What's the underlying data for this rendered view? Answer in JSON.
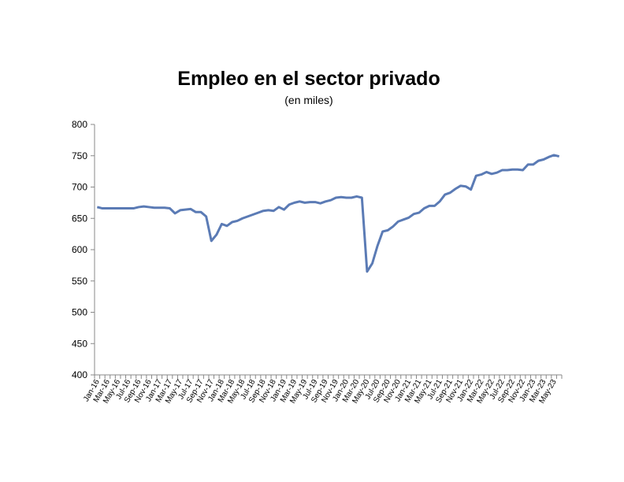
{
  "chart_data": {
    "type": "line",
    "title": "Empleo en el sector privado",
    "subtitle": "(en miles)",
    "categories": [
      "Jan-16",
      null,
      "Mar-16",
      null,
      "May-16",
      null,
      "Jul-16",
      null,
      "Sep-16",
      null,
      "Nov-16",
      null,
      "Jan-17",
      null,
      "Mar-17",
      null,
      "May-17",
      null,
      "Jul-17",
      null,
      "Sep-17",
      null,
      "Nov-17",
      null,
      "Jan-18",
      null,
      "Mar-18",
      null,
      "May-18",
      null,
      "Jul-18",
      null,
      "Sep-18",
      null,
      "Nov-18",
      null,
      "Jan-19",
      null,
      "Mar-19",
      null,
      "May-19",
      null,
      "Jul-19",
      null,
      "Sep-19",
      null,
      "Nov-19",
      null,
      "Jan-20",
      null,
      "Mar-20",
      null,
      "May-20",
      null,
      "Jul-20",
      null,
      "Sep-20",
      null,
      "Nov-20",
      null,
      "Jan-21",
      null,
      "Mar-21",
      null,
      "May-21",
      null,
      "Jul-21",
      null,
      "Sep-21",
      null,
      "Nov-21",
      null,
      "Jan-22",
      null,
      "Mar-22",
      null,
      "May-22",
      null,
      "Jul-22",
      null,
      "Sep-22",
      null,
      "Nov-22",
      null,
      "Jan-23",
      null,
      "Mar-23",
      null,
      "May-23",
      null
    ],
    "series": [
      {
        "name": "Empleo",
        "color": "#5b7bb5",
        "values": [
          668,
          666,
          666,
          666,
          666,
          666,
          666,
          666,
          668,
          669,
          668,
          667,
          667,
          667,
          666,
          658,
          663,
          664,
          665,
          660,
          660,
          653,
          614,
          624,
          641,
          638,
          644,
          646,
          650,
          653,
          656,
          659,
          662,
          663,
          662,
          668,
          664,
          672,
          675,
          677,
          675,
          676,
          676,
          674,
          677,
          679,
          683,
          684,
          683,
          683,
          685,
          683,
          565,
          578,
          606,
          629,
          631,
          637,
          645,
          648,
          651,
          657,
          659,
          666,
          670,
          670,
          677,
          688,
          691,
          697,
          702,
          701,
          696,
          718,
          720,
          724,
          721,
          723,
          727,
          727,
          728,
          728,
          727,
          736,
          736,
          742,
          744,
          748,
          751,
          749
        ]
      }
    ],
    "ylim": [
      400,
      800
    ],
    "yticks": [
      400,
      450,
      500,
      550,
      600,
      650,
      700,
      750,
      800
    ]
  }
}
